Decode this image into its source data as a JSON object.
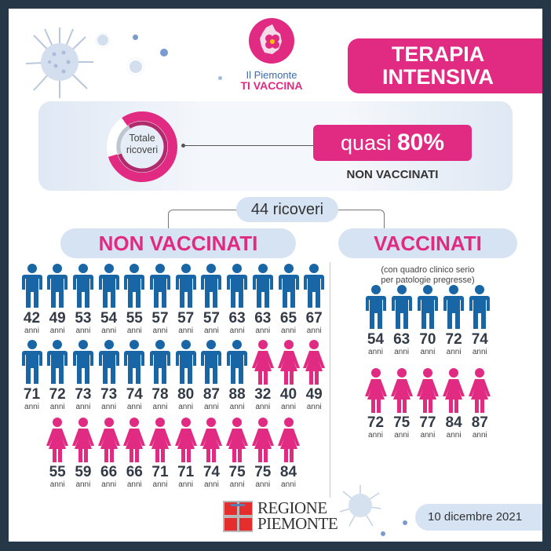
{
  "header": {
    "logo_line1": "Il Piemonte",
    "logo_line2": "TI VACCINA",
    "title_line1": "TERAPIA",
    "title_line2": "INTENSIVA"
  },
  "summary": {
    "donut_label_line1": "Totale",
    "donut_label_line2": "ricoveri",
    "donut_share_unvaccinated_pct": 80,
    "percent_prefix": "quasi",
    "percent_value": "80%",
    "percent_subtitle": "NON VACCINATI"
  },
  "total": {
    "label": "44 ricoveri"
  },
  "groups": {
    "non_vaccinati": {
      "title": "NON VACCINATI",
      "men": [
        "42",
        "49",
        "53",
        "54",
        "55",
        "57",
        "57",
        "57",
        "63",
        "63",
        "65",
        "67",
        "71",
        "72",
        "73",
        "73",
        "74",
        "78",
        "80",
        "87",
        "88"
      ],
      "women": [
        "32",
        "40",
        "49",
        "55",
        "59",
        "66",
        "66",
        "71",
        "71",
        "74",
        "75",
        "75",
        "84"
      ]
    },
    "vaccinati": {
      "title": "VACCINATI",
      "note_line1": "(con quadro clinico serio",
      "note_line2": "per patologie pregresse)",
      "men": [
        "54",
        "63",
        "70",
        "72",
        "74"
      ],
      "women": [
        "72",
        "75",
        "77",
        "84",
        "87"
      ]
    }
  },
  "unit_label": "anni",
  "footer": {
    "region_line1": "REGIONE",
    "region_line2": "PIEMONTE",
    "date": "10 dicembre 2021"
  },
  "colors": {
    "frame": "#263847",
    "magenta": "#e12a82",
    "male_blue": "#1866a6",
    "pill_blue": "#d5e3f3",
    "text_dark": "#333b47"
  }
}
